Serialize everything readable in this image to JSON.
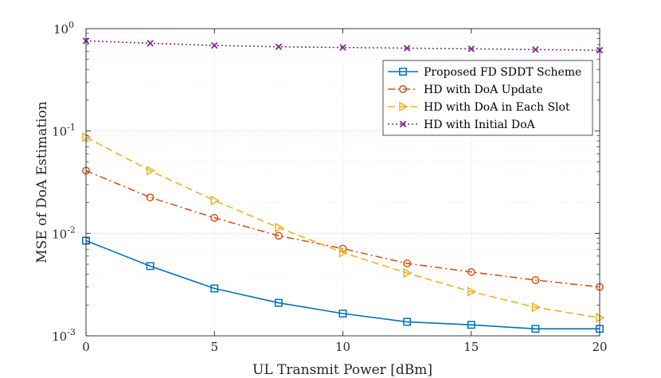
{
  "chart_data": {
    "type": "line",
    "title": "",
    "xlabel": "UL Transmit Power [dBm]",
    "ylabel": "MSE of DoA Estimation",
    "xlim": [
      0,
      20
    ],
    "ylim": [
      0.001,
      1
    ],
    "yscale": "log",
    "grid": true,
    "legend_position": "top-right",
    "x_ticks": [
      {
        "value": 0,
        "label": "0"
      },
      {
        "value": 5,
        "label": "5"
      },
      {
        "value": 10,
        "label": "10"
      },
      {
        "value": 15,
        "label": "15"
      },
      {
        "value": 20,
        "label": "20"
      }
    ],
    "y_ticks": [
      {
        "value": 1,
        "base": "10",
        "exp": "0"
      },
      {
        "value": 0.1,
        "base": "10",
        "exp": "-1"
      },
      {
        "value": 0.01,
        "base": "10",
        "exp": "-2"
      },
      {
        "value": 0.001,
        "base": "10",
        "exp": "-3"
      }
    ],
    "x": [
      0,
      2.5,
      5,
      7.5,
      10,
      12.5,
      15,
      17.5,
      20
    ],
    "series": [
      {
        "name": "Proposed FD SDDT Scheme",
        "color": "#0072bd",
        "line_style": "solid",
        "marker": "square",
        "values": [
          0.0085,
          0.0048,
          0.0029,
          0.0021,
          0.00165,
          0.00137,
          0.00128,
          0.00117,
          0.00117
        ]
      },
      {
        "name": "HD with DoA Update",
        "color": "#d95319",
        "line_style": "dashdot",
        "marker": "circle",
        "values": [
          0.041,
          0.0225,
          0.0142,
          0.0095,
          0.0071,
          0.0051,
          0.0042,
          0.0035,
          0.003
        ]
      },
      {
        "name": "HD with DoA in Each Slot",
        "color": "#edb120",
        "line_style": "dashed",
        "marker": "triangle-right",
        "values": [
          0.087,
          0.041,
          0.021,
          0.0114,
          0.0065,
          0.0041,
          0.0027,
          0.0019,
          0.0015
        ]
      },
      {
        "name": "HD with Initial DoA",
        "color": "#7e2f8e",
        "line_style": "dotted",
        "marker": "x",
        "values": [
          0.76,
          0.72,
          0.685,
          0.665,
          0.655,
          0.645,
          0.635,
          0.625,
          0.615
        ]
      }
    ]
  }
}
